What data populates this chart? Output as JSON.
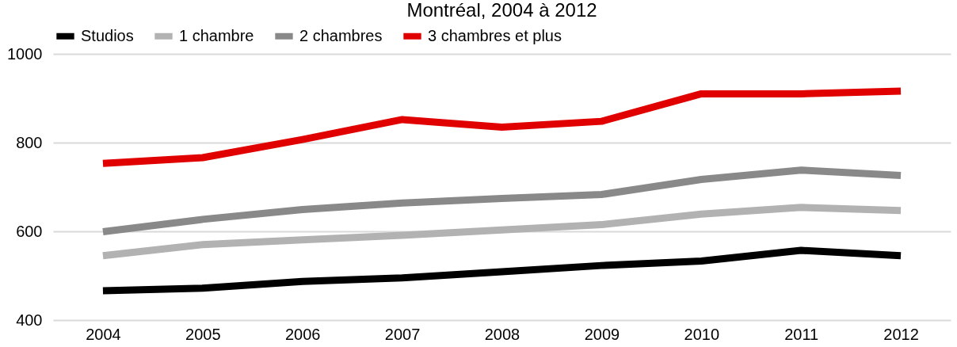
{
  "chart_data": {
    "type": "line",
    "title": "Montréal, 2004 à 2012",
    "categories": [
      "2004",
      "2005",
      "2006",
      "2007",
      "2008",
      "2009",
      "2010",
      "2011",
      "2012"
    ],
    "series": [
      {
        "name": "Studios",
        "color": "#000000",
        "values": [
          466,
          472,
          487,
          495,
          509,
          523,
          533,
          557,
          545
        ]
      },
      {
        "name": "1 chambre",
        "color": "#b2b2b2",
        "values": [
          545,
          570,
          581,
          591,
          603,
          615,
          639,
          654,
          647
        ]
      },
      {
        "name": "2 chambres",
        "color": "#898989",
        "values": [
          599,
          627,
          649,
          664,
          674,
          683,
          717,
          738,
          726
        ]
      },
      {
        "name": "3 chambres et plus",
        "color": "#e00000",
        "values": [
          753,
          766,
          807,
          852,
          835,
          848,
          910,
          910,
          916
        ]
      }
    ],
    "ylim": [
      400,
      1000
    ],
    "yticks": [
      400,
      600,
      800,
      1000
    ],
    "grid": "y",
    "legend": "top",
    "marker": "none",
    "line_style": "solid"
  }
}
